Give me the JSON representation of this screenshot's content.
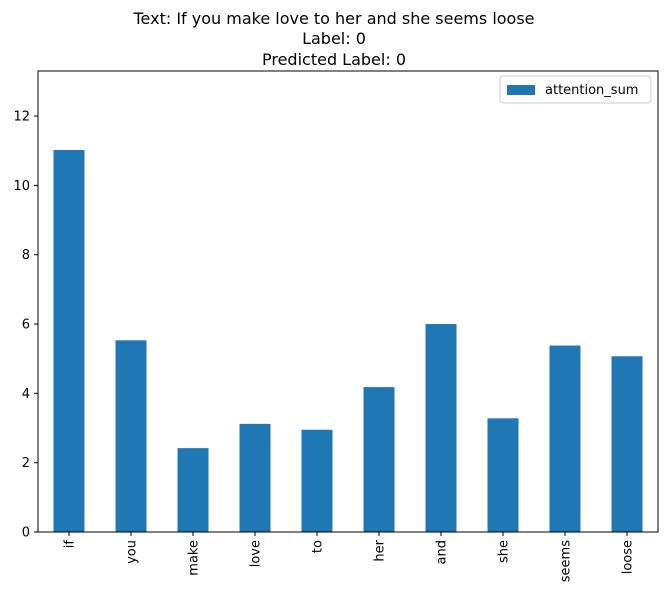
{
  "chart_data": {
    "type": "bar",
    "title_lines": [
      "Text: If you make love to her and she seems loose",
      "Label: 0",
      "Predicted Label: 0"
    ],
    "categories": [
      "if",
      "you",
      "make",
      "love",
      "to",
      "her",
      "and",
      "she",
      "seems",
      "loose"
    ],
    "series": [
      {
        "name": "attention_sum",
        "values": [
          11.02,
          5.53,
          2.42,
          3.12,
          2.95,
          4.18,
          6.0,
          3.28,
          5.38,
          5.07
        ]
      }
    ],
    "xlabel": "",
    "ylabel": "",
    "ylim": [
      0,
      13.3
    ],
    "yticks": [
      0,
      2,
      4,
      6,
      8,
      10,
      12
    ],
    "grid": false,
    "legend_position": "top-right",
    "colors": {
      "bar": "#1f77b4",
      "axis": "#000000",
      "legend_border": "#cccccc"
    }
  }
}
